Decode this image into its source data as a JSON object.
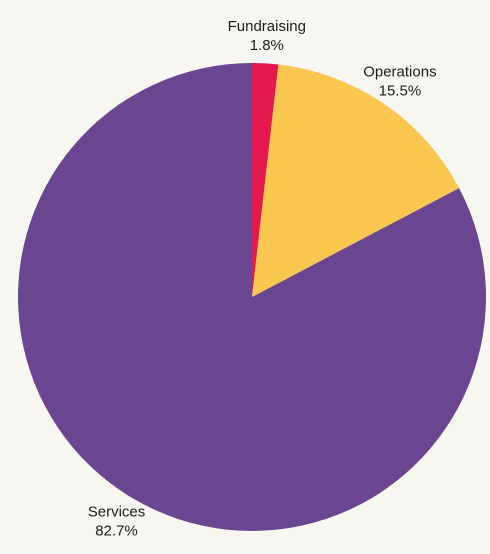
{
  "chart_data": {
    "type": "pie",
    "title": "",
    "slices": [
      {
        "label": "Fundraising",
        "value": 1.8,
        "value_label": "1.8%",
        "color": "#e5194f"
      },
      {
        "label": "Operations",
        "value": 15.5,
        "value_label": "15.5%",
        "color": "#f9c74f"
      },
      {
        "label": "Services",
        "value": 82.7,
        "value_label": "82.7%",
        "color": "#6a4691"
      }
    ],
    "start_angle": "12 o'clock",
    "direction": "clockwise",
    "legend": "none",
    "labels": "outside"
  },
  "colors": {
    "background": "#f8f6f1"
  }
}
